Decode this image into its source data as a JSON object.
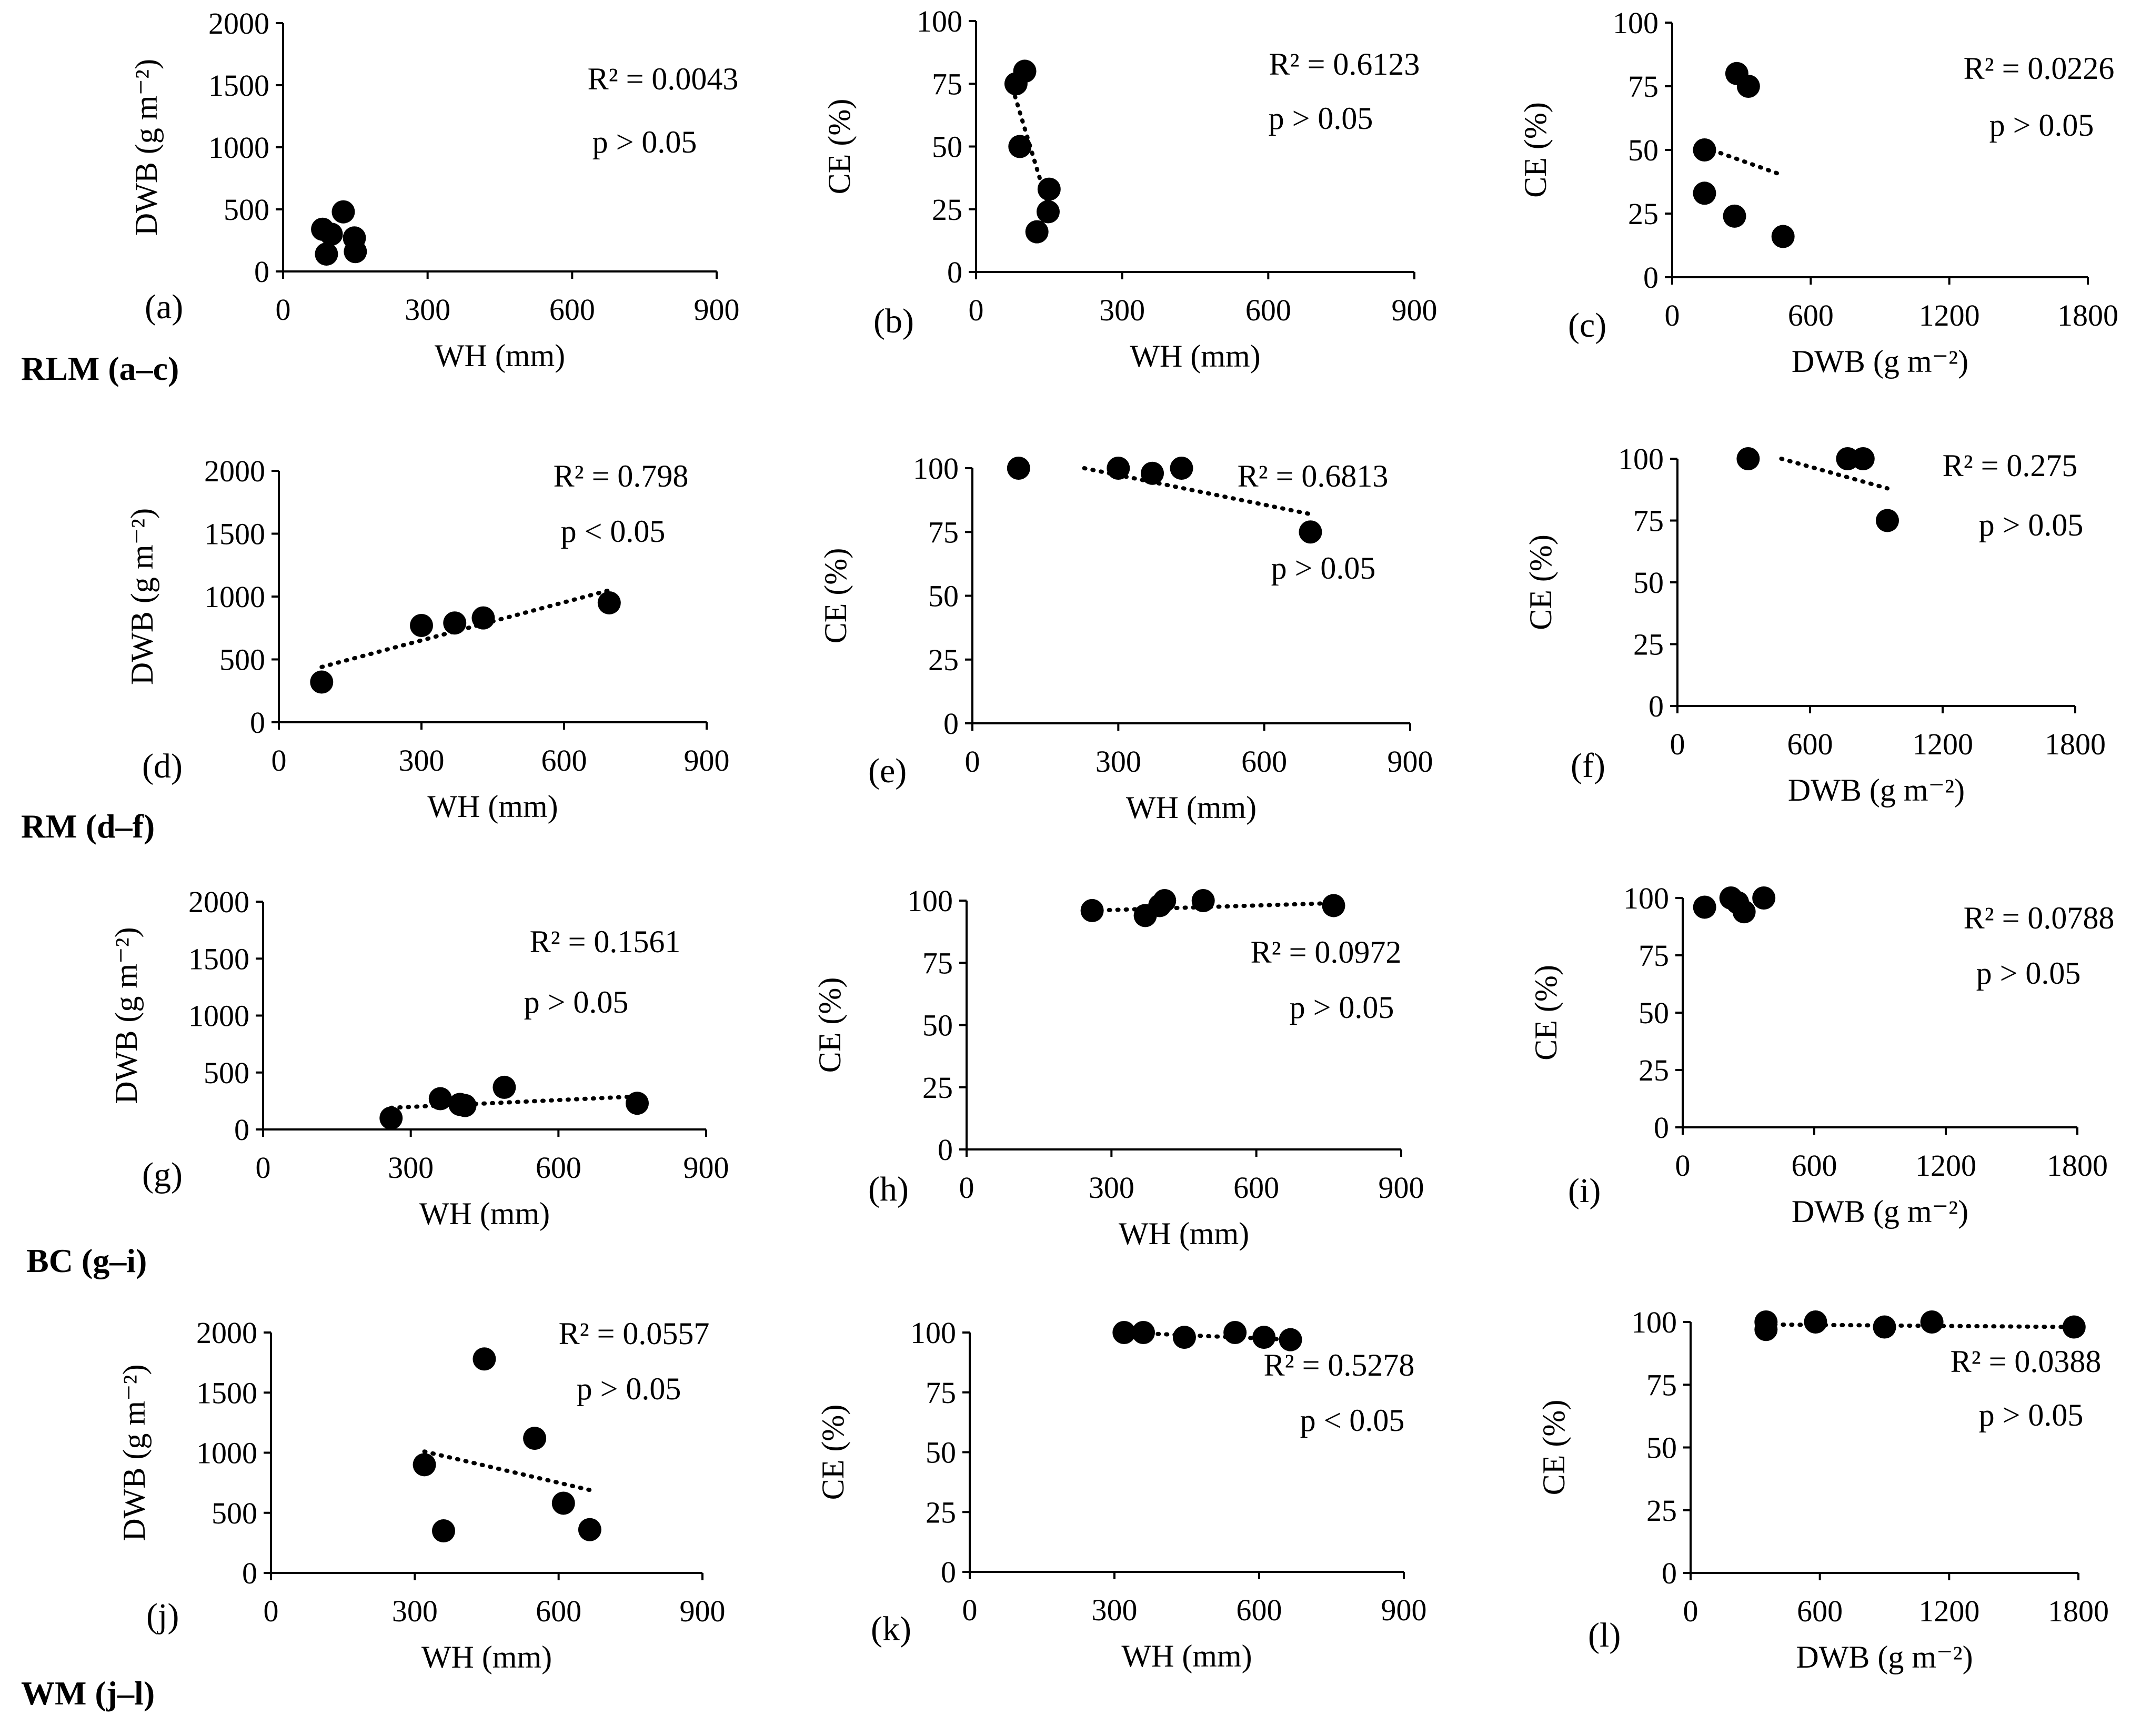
{
  "chart_data": [
    {
      "id": "a",
      "type": "scatter",
      "panel_label": "(a)",
      "xlabel": "WH (mm)",
      "ylabel": "DWB (g m⁻²)",
      "xlim": [
        0,
        900
      ],
      "ylim": [
        0,
        2000
      ],
      "xticks": [
        "0",
        "300",
        "600",
        "900"
      ],
      "yticks": [
        "0",
        "500",
        "1000",
        "1500",
        "2000"
      ],
      "points": [
        [
          82,
          340
        ],
        [
          90,
          140
        ],
        [
          125,
          480
        ],
        [
          150,
          160
        ],
        [
          148,
          270
        ],
        [
          100,
          300
        ]
      ],
      "trendline": [
        [
          80,
          305
        ],
        [
          155,
          300
        ]
      ],
      "r2": "R² = 0.0043",
      "p": "p > 0.05"
    },
    {
      "id": "b",
      "type": "scatter",
      "panel_label": "(b)",
      "xlabel": "WH (mm)",
      "ylabel": "CE (%)",
      "xlim": [
        0,
        900
      ],
      "ylim": [
        0,
        100
      ],
      "xticks": [
        "0",
        "300",
        "600",
        "900"
      ],
      "yticks": [
        "0",
        "25",
        "50",
        "75",
        "100"
      ],
      "points": [
        [
          82,
          75
        ],
        [
          100,
          80
        ],
        [
          90,
          50
        ],
        [
          150,
          33
        ],
        [
          148,
          24
        ],
        [
          125,
          16
        ]
      ],
      "trendline": [
        [
          80,
          70
        ],
        [
          150,
          25
        ]
      ],
      "r2": "R² = 0.6123",
      "p": "p > 0.05"
    },
    {
      "id": "c",
      "type": "scatter",
      "panel_label": "(c)",
      "xlabel": "DWB (g m⁻²)",
      "ylabel": "CE  (%)",
      "xlim": [
        0,
        1800
      ],
      "ylim": [
        0,
        100
      ],
      "xticks": [
        "0",
        "600",
        "1200",
        "1800"
      ],
      "yticks": [
        "0",
        "25",
        "50",
        "75",
        "100"
      ],
      "points": [
        [
          140,
          50
        ],
        [
          140,
          33
        ],
        [
          280,
          80
        ],
        [
          330,
          75
        ],
        [
          270,
          24
        ],
        [
          480,
          16
        ]
      ],
      "trendline": [
        [
          140,
          51
        ],
        [
          480,
          40
        ]
      ],
      "r2": "R² = 0.0226",
      "p": "p > 0.05"
    },
    {
      "id": "d",
      "type": "scatter",
      "panel_label": "(d)",
      "xlabel": "WH (mm)",
      "ylabel": "DWB (g m⁻²)",
      "xlim": [
        0,
        900
      ],
      "ylim": [
        0,
        2000
      ],
      "xticks": [
        "0",
        "300",
        "600",
        "900"
      ],
      "yticks": [
        "0",
        "500",
        "1000",
        "1500",
        "2000"
      ],
      "points": [
        [
          90,
          320
        ],
        [
          300,
          770
        ],
        [
          370,
          790
        ],
        [
          430,
          830
        ],
        [
          695,
          950
        ]
      ],
      "trendline": [
        [
          90,
          440
        ],
        [
          695,
          1050
        ]
      ],
      "r2": "R² = 0.798",
      "p": "p < 0.05"
    },
    {
      "id": "e",
      "type": "scatter",
      "panel_label": "(e)",
      "xlabel": "WH (mm)",
      "ylabel": "CE (%)",
      "xlim": [
        0,
        900
      ],
      "ylim": [
        0,
        100
      ],
      "xticks": [
        "0",
        "300",
        "600",
        "900"
      ],
      "yticks": [
        "0",
        "25",
        "50",
        "75",
        "100"
      ],
      "points": [
        [
          95,
          100
        ],
        [
          300,
          100
        ],
        [
          370,
          98
        ],
        [
          430,
          100
        ],
        [
          695,
          75
        ]
      ],
      "trendline": [
        [
          230,
          100
        ],
        [
          695,
          82
        ]
      ],
      "r2": "R² = 0.6813",
      "p": "p > 0.05"
    },
    {
      "id": "f",
      "type": "scatter",
      "panel_label": "(f)",
      "xlabel": "DWB (g m⁻²)",
      "ylabel": "CE (%)",
      "xlim": [
        0,
        1800
      ],
      "ylim": [
        0,
        100
      ],
      "xticks": [
        "0",
        "600",
        "1200",
        "1800"
      ],
      "yticks": [
        "0",
        "25",
        "50",
        "75",
        "100"
      ],
      "points": [
        [
          320,
          100
        ],
        [
          770,
          100
        ],
        [
          840,
          100
        ],
        [
          950,
          75
        ]
      ],
      "trendline": [
        [
          470,
          100
        ],
        [
          950,
          88
        ]
      ],
      "r2": "R² = 0.275",
      "p": "p > 0.05"
    },
    {
      "id": "g",
      "type": "scatter",
      "panel_label": "(g)",
      "xlabel": "WH (mm)",
      "ylabel": "DWB (g m⁻²)",
      "xlim": [
        0,
        900
      ],
      "ylim": [
        0,
        2000
      ],
      "xticks": [
        "0",
        "300",
        "600",
        "900"
      ],
      "yticks": [
        "0",
        "500",
        "1000",
        "1500",
        "2000"
      ],
      "points": [
        [
          260,
          100
        ],
        [
          360,
          270
        ],
        [
          400,
          220
        ],
        [
          410,
          210
        ],
        [
          490,
          370
        ],
        [
          760,
          230
        ]
      ],
      "trendline": [
        [
          260,
          190
        ],
        [
          760,
          290
        ]
      ],
      "r2": "R² = 0.1561",
      "p": "p > 0.05"
    },
    {
      "id": "h",
      "type": "scatter",
      "panel_label": "(h)",
      "xlabel": "WH (mm)",
      "ylabel": "CE (%)",
      "xlim": [
        0,
        900
      ],
      "ylim": [
        0,
        100
      ],
      "xticks": [
        "0",
        "300",
        "600",
        "900"
      ],
      "yticks": [
        "0",
        "25",
        "50",
        "75",
        "100"
      ],
      "points": [
        [
          260,
          96
        ],
        [
          370,
          94
        ],
        [
          400,
          98
        ],
        [
          410,
          100
        ],
        [
          490,
          100
        ],
        [
          760,
          98
        ]
      ],
      "trendline": [
        [
          260,
          96
        ],
        [
          760,
          99
        ]
      ],
      "r2": "R² = 0.0972",
      "p": "p > 0.05"
    },
    {
      "id": "i",
      "type": "scatter",
      "panel_label": "(i)",
      "xlabel": "DWB (g m⁻²)",
      "ylabel": "CE (%)",
      "xlim": [
        0,
        1800
      ],
      "ylim": [
        0,
        100
      ],
      "xticks": [
        "0",
        "600",
        "1200",
        "1800"
      ],
      "yticks": [
        "0",
        "25",
        "50",
        "75",
        "100"
      ],
      "points": [
        [
          100,
          96
        ],
        [
          220,
          100
        ],
        [
          250,
          98
        ],
        [
          280,
          94
        ],
        [
          370,
          100
        ]
      ],
      "trendline": [],
      "r2": "R² = 0.0788",
      "p": "p > 0.05"
    },
    {
      "id": "j",
      "type": "scatter",
      "panel_label": "(j)",
      "xlabel": "WH (mm)",
      "ylabel": "DWB (g m⁻²)",
      "xlim": [
        0,
        900
      ],
      "ylim": [
        0,
        2000
      ],
      "xticks": [
        "0",
        "300",
        "600",
        "900"
      ],
      "yticks": [
        "0",
        "500",
        "1000",
        "1500",
        "2000"
      ],
      "points": [
        [
          320,
          900
        ],
        [
          360,
          350
        ],
        [
          445,
          1780
        ],
        [
          550,
          1120
        ],
        [
          610,
          580
        ],
        [
          665,
          360
        ]
      ],
      "trendline": [
        [
          320,
          1010
        ],
        [
          665,
          690
        ]
      ],
      "r2": "R² = 0.0557",
      "p": "p > 0.05"
    },
    {
      "id": "k",
      "type": "scatter",
      "panel_label": "(k)",
      "xlabel": "WH (mm)",
      "ylabel": "CE (%)",
      "xlim": [
        0,
        900
      ],
      "ylim": [
        0,
        100
      ],
      "xticks": [
        "0",
        "300",
        "600",
        "900"
      ],
      "yticks": [
        "0",
        "25",
        "50",
        "75",
        "100"
      ],
      "points": [
        [
          320,
          100
        ],
        [
          360,
          100
        ],
        [
          445,
          98
        ],
        [
          550,
          100
        ],
        [
          610,
          98
        ],
        [
          665,
          97
        ]
      ],
      "trendline": [
        [
          320,
          100
        ],
        [
          665,
          97
        ]
      ],
      "r2": "R² = 0.5278",
      "p": "p < 0.05"
    },
    {
      "id": "l",
      "type": "scatter",
      "panel_label": "(l)",
      "xlabel": "DWB (g m⁻²)",
      "ylabel": "CE (%)",
      "xlim": [
        0,
        1800
      ],
      "ylim": [
        0,
        100
      ],
      "xticks": [
        "0",
        "600",
        "1200",
        "1800"
      ],
      "yticks": [
        "0",
        "25",
        "50",
        "75",
        "100"
      ],
      "points": [
        [
          350,
          100
        ],
        [
          350,
          97
        ],
        [
          580,
          100
        ],
        [
          900,
          98
        ],
        [
          1120,
          100
        ],
        [
          1780,
          98
        ]
      ],
      "trendline": [
        [
          350,
          99
        ],
        [
          1780,
          98
        ]
      ],
      "r2": "R² = 0.0388",
      "p": "p > 0.05"
    }
  ],
  "row_labels": [
    "RLM (a–c)",
    "RM (d–f)",
    "BC (g–i)",
    "WM (j–l)"
  ]
}
